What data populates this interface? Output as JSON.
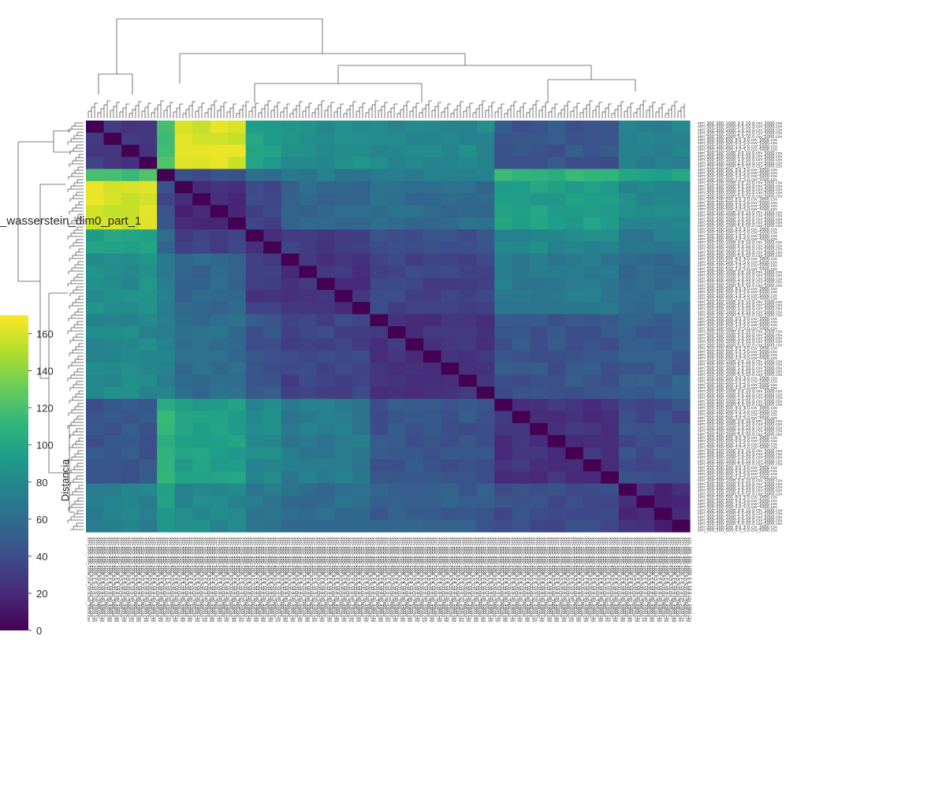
{
  "figure": {
    "title": "_wasserstein_dim0_part_1"
  },
  "colors": {
    "viridis": [
      "#440154",
      "#482878",
      "#3e4989",
      "#31688e",
      "#26828e",
      "#1f9e89",
      "#35b779",
      "#6ece58",
      "#b5de2b",
      "#fde725"
    ],
    "dendrogram_line": "#555555"
  },
  "colorbar": {
    "label": "Distancia",
    "ticks": [
      "0",
      "20",
      "40",
      "60",
      "80",
      "100",
      "120",
      "140",
      "160"
    ],
    "min": 0,
    "max": 170
  },
  "heatmap": {
    "n": 34,
    "row_tick_labels": [
      "sim_300_300_1000_0.0_10.0.csv_5000.csv",
      "sim_300_300_1000_0.5_10.0.csv_5000.csv",
      "sim_300_300_1000_1.0_10.0.csv_5000.csv",
      "sim_300_300_1000_2.0_10.0.csv_5000.csv",
      "sim_300_300_1000_5.0_10.0.csv_5000.csv",
      "sim_300_300_500_0.0_5.0.csv_5000.csv",
      "sim_300_300_500_0.5_5.0.csv_5000.csv",
      "sim_300_300_500_1.0_5.0.csv_5000.csv",
      "sim_300_300_500_2.0_5.0.csv_5000.csv"
    ],
    "col_tick_labels": [
      "sim_300_300_1000_0.0_10.0.csv_5000.csv",
      "sim_300_300_500_0.5_5.0.csv_5000.csv",
      "sim_300_300_2000_1.0_20.0.csv_5000.csv"
    ]
  },
  "chart_data": {
    "type": "heatmap",
    "title": "_wasserstein_dim0_part_1",
    "colorbar_label": "Distancia",
    "value_range": [
      0,
      170
    ],
    "block_boundaries": [
      0,
      4,
      5,
      9,
      11,
      16,
      23,
      30,
      34
    ],
    "block_matrix": [
      [
        30,
        120,
        160,
        95,
        85,
        80,
        45,
        75
      ],
      [
        120,
        20,
        40,
        60,
        70,
        75,
        110,
        95
      ],
      [
        160,
        40,
        20,
        35,
        55,
        60,
        95,
        80
      ],
      [
        95,
        60,
        35,
        25,
        30,
        45,
        80,
        70
      ],
      [
        85,
        70,
        55,
        30,
        25,
        35,
        70,
        60
      ],
      [
        80,
        75,
        60,
        45,
        35,
        25,
        45,
        50
      ],
      [
        45,
        110,
        95,
        80,
        70,
        45,
        25,
        40
      ],
      [
        75,
        95,
        80,
        70,
        60,
        50,
        40,
        20
      ]
    ],
    "diagonal_value": 0
  }
}
